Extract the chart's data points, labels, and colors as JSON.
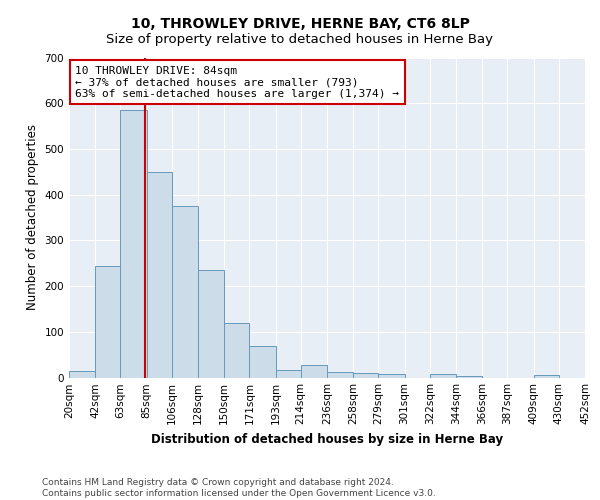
{
  "title": "10, THROWLEY DRIVE, HERNE BAY, CT6 8LP",
  "subtitle": "Size of property relative to detached houses in Herne Bay",
  "xlabel": "Distribution of detached houses by size in Herne Bay",
  "ylabel": "Number of detached properties",
  "bar_color": "#ccdce8",
  "bar_edge_color": "#6699bb",
  "background_color": "#e8eef5",
  "grid_color": "#ffffff",
  "annotation_box_color": "#cc0000",
  "annotation_line1": "10 THROWLEY DRIVE: 84sqm",
  "annotation_line2": "← 37% of detached houses are smaller (793)",
  "annotation_line3": "63% of semi-detached houses are larger (1,374) →",
  "vline_x": 84,
  "vline_color": "#cc0000",
  "bin_edges": [
    20,
    42,
    63,
    85,
    106,
    128,
    150,
    171,
    193,
    214,
    236,
    258,
    279,
    301,
    322,
    344,
    366,
    387,
    409,
    430,
    452
  ],
  "bar_heights": [
    15,
    245,
    585,
    450,
    375,
    235,
    120,
    68,
    17,
    28,
    12,
    9,
    8,
    0,
    8,
    3,
    0,
    0,
    5,
    0
  ],
  "ylim": [
    0,
    700
  ],
  "yticks": [
    0,
    100,
    200,
    300,
    400,
    500,
    600,
    700
  ],
  "footer_line1": "Contains HM Land Registry data © Crown copyright and database right 2024.",
  "footer_line2": "Contains public sector information licensed under the Open Government Licence v3.0.",
  "title_fontsize": 10,
  "subtitle_fontsize": 9.5,
  "axis_label_fontsize": 8.5,
  "tick_fontsize": 7.5,
  "annotation_fontsize": 8,
  "footer_fontsize": 6.5
}
